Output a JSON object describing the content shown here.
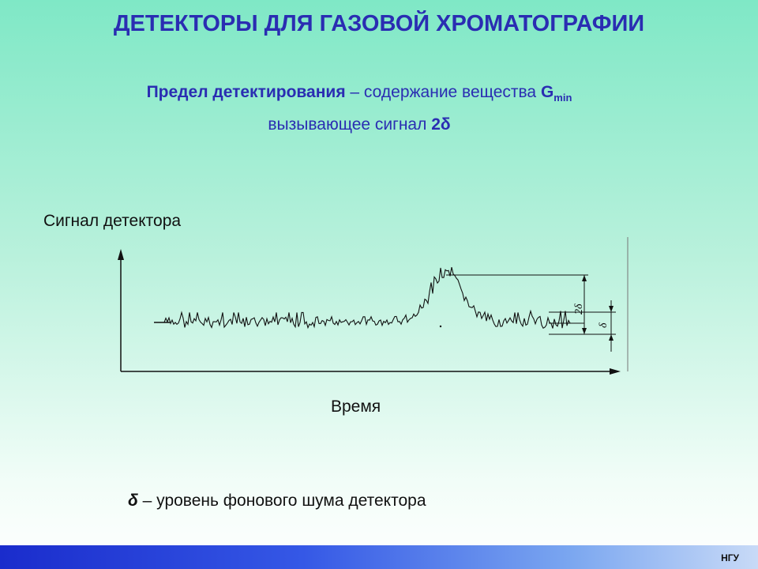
{
  "title": "ДЕТЕКТОРЫ ДЛЯ ГАЗОВОЙ ХРОМАТОГРАФИИ",
  "definition": {
    "term": "Предел детектирования",
    "text": " – содержание вещества ",
    "symbol": "G",
    "subscript": "min",
    "line2_text": "вызывающее сигнал ",
    "line2_value": "2δ"
  },
  "diagram": {
    "y_axis_label": "Сигнал детектора",
    "x_axis_label": "Время",
    "dim_2delta": "2δ",
    "dim_delta": "δ"
  },
  "legend": {
    "symbol": "δ",
    "text": " – уровень фонового шума детектора"
  },
  "footer": {
    "org": "НГУ"
  },
  "colors": {
    "title": "#2a2db2",
    "footer_start": "#1a2ccc"
  }
}
